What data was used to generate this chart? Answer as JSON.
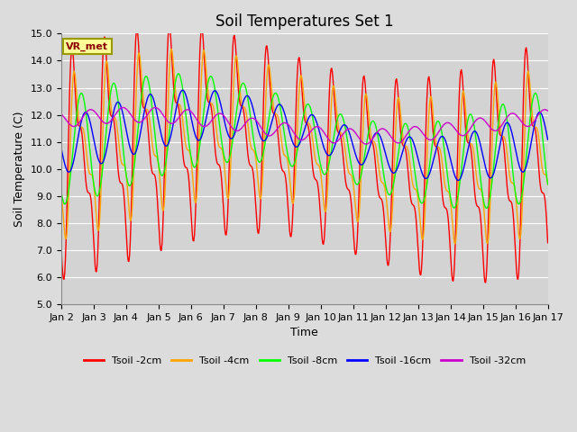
{
  "title": "Soil Temperatures Set 1",
  "xlabel": "Time",
  "ylabel": "Soil Temperature (C)",
  "ylim": [
    5.0,
    15.0
  ],
  "yticks": [
    5.0,
    6.0,
    7.0,
    8.0,
    9.0,
    10.0,
    11.0,
    12.0,
    13.0,
    14.0,
    15.0
  ],
  "date_labels": [
    "Jan 2",
    "Jan 3",
    "Jan 4",
    "Jan 5",
    "Jan 6",
    "Jan 7",
    "Jan 8",
    "Jan 9",
    "Jan 10",
    "Jan 11",
    "Jan 12",
    "Jan 13",
    "Jan 14",
    "Jan 15",
    "Jan 16",
    "Jan 17"
  ],
  "annotation_text": "VR_met",
  "annotation_color": "#8B0000",
  "annotation_bg": "#FFFF99",
  "annotation_border": "#999900",
  "colors": {
    "Tsoil_2cm": "#FF0000",
    "Tsoil_4cm": "#FFA500",
    "Tsoil_8cm": "#00FF00",
    "Tsoil_16cm": "#0000FF",
    "Tsoil_32cm": "#CC00CC"
  },
  "legend_labels": [
    "Tsoil -2cm",
    "Tsoil -4cm",
    "Tsoil -8cm",
    "Tsoil -16cm",
    "Tsoil -32cm"
  ],
  "background_color": "#DCDCDC",
  "plot_bg_color": "#D3D3D3",
  "grid_color": "#FFFFFF",
  "title_fontsize": 12,
  "axis_fontsize": 9,
  "tick_fontsize": 8
}
